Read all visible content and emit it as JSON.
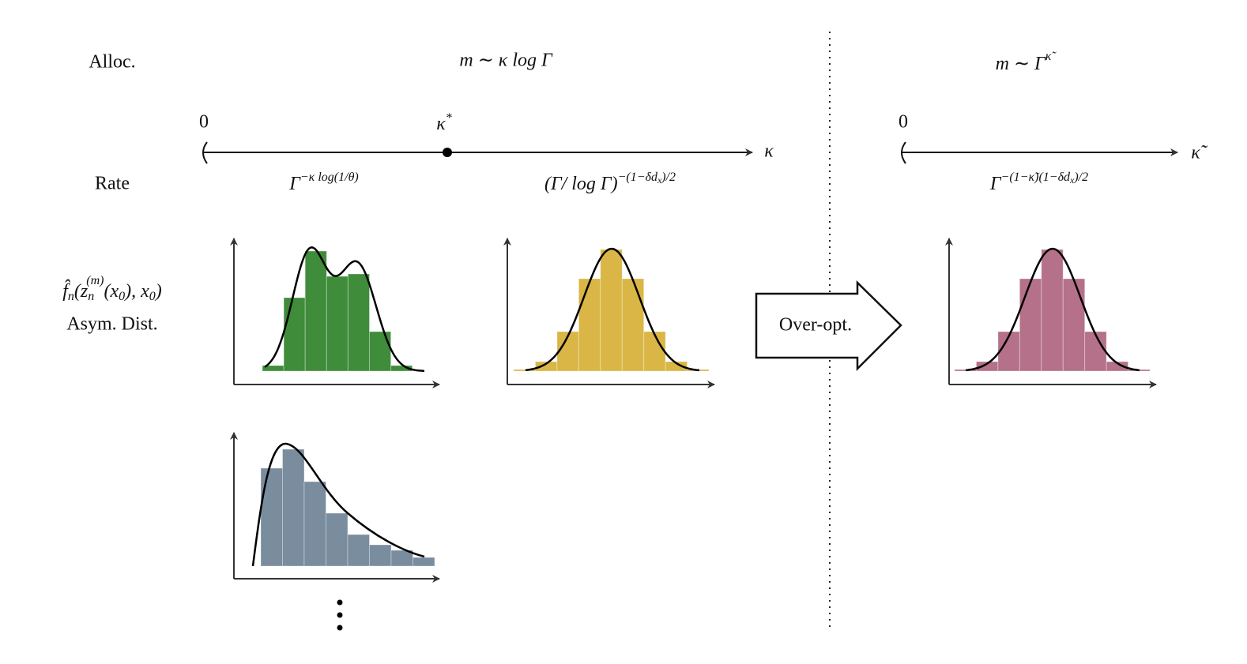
{
  "labels": {
    "alloc": "Alloc.",
    "rate": "Rate",
    "asym": "Asym. Dist.",
    "over_opt": "Over-opt."
  },
  "alloc_left": "m ∼ κ log Γ",
  "alloc_right": {
    "base": "m ∼ Γ",
    "sup": "κ̃"
  },
  "axis_left": {
    "zero": "0",
    "kappa_star": {
      "base": "κ",
      "sup": "*"
    },
    "end": "κ"
  },
  "axis_right": {
    "zero": "0",
    "end": "κ̃"
  },
  "rate_left": {
    "base": "Γ",
    "sup": "−κ log(1/θ)"
  },
  "rate_mid": {
    "base": "(Γ/ log Γ)",
    "sup": "−(1−δd",
    "sup_sub": "x",
    "sup_end": ")/2"
  },
  "rate_right": {
    "base": "Γ",
    "sup": "−(1−κ̃)(1−δd",
    "sup_sub": "x",
    "sup_end": ")/2"
  },
  "estimator": {
    "f": "f̂",
    "f_sub": "n",
    "open": "(z",
    "z_sub": "n",
    "z_sup": "(m)",
    "rest": "(x",
    "x_sub": "0",
    "mid": "), x",
    "x2_sub": "0",
    "close": ")"
  }
}
